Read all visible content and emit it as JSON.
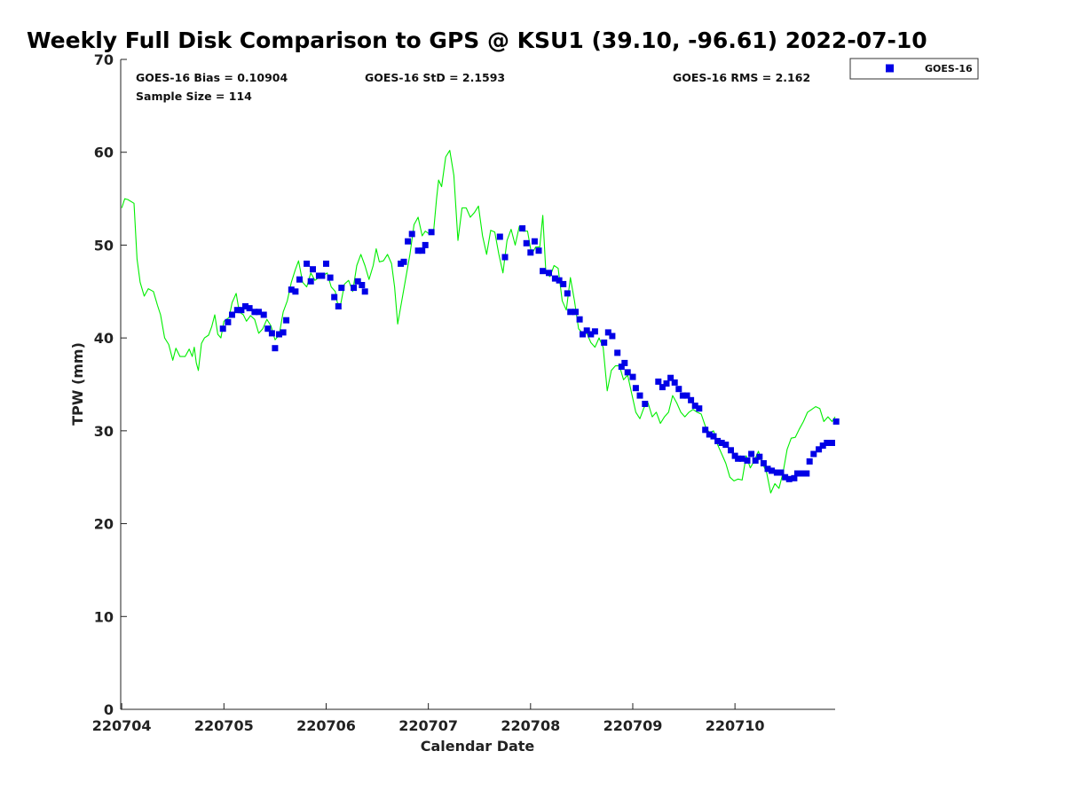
{
  "chart_data": {
    "type": "scatter",
    "title": "Weekly Full Disk Comparison to GPS @ KSU1 (39.10, -96.61) 2022-07-10",
    "xlabel": "Calendar Date",
    "ylabel": "TPW (mm)",
    "x_tick_labels": [
      "220704",
      "220705",
      "220706",
      "220707",
      "220708",
      "220709",
      "220710"
    ],
    "x_tick_values": [
      0,
      1,
      2,
      3,
      4,
      5,
      6
    ],
    "xlim": [
      -0.01,
      6.98
    ],
    "ylim": [
      0,
      70
    ],
    "y_ticks": [
      0,
      10,
      20,
      30,
      40,
      50,
      60,
      70
    ],
    "grid": false,
    "legend": {
      "placement": "top-right-outside",
      "entries": [
        {
          "name": "GOES-16",
          "marker": "square",
          "color": "#0000e6"
        }
      ]
    },
    "stats": {
      "bias": "GOES-16 Bias = 0.10904",
      "std": "GOES-16 StD = 2.1593",
      "rms": "GOES-16 RMS = 2.162",
      "sample_size": "Sample Size = 114"
    },
    "series": [
      {
        "name": "GOES-16",
        "style": "markers",
        "color": "#0000e6",
        "points": [
          [
            0.99,
            41.0
          ],
          [
            1.04,
            41.7
          ],
          [
            1.08,
            42.5
          ],
          [
            1.13,
            43.0
          ],
          [
            1.17,
            43.0
          ],
          [
            1.21,
            43.4
          ],
          [
            1.25,
            43.2
          ],
          [
            1.3,
            42.8
          ],
          [
            1.34,
            42.8
          ],
          [
            1.39,
            42.5
          ],
          [
            1.43,
            41.0
          ],
          [
            1.47,
            40.5
          ],
          [
            1.5,
            38.9
          ],
          [
            1.54,
            40.4
          ],
          [
            1.58,
            40.6
          ],
          [
            1.61,
            41.9
          ],
          [
            1.66,
            45.2
          ],
          [
            1.7,
            45.0
          ],
          [
            1.74,
            46.3
          ],
          [
            1.81,
            48.0
          ],
          [
            1.85,
            46.1
          ],
          [
            1.87,
            47.4
          ],
          [
            1.93,
            46.7
          ],
          [
            1.96,
            46.7
          ],
          [
            2.0,
            48.0
          ],
          [
            2.04,
            46.5
          ],
          [
            2.08,
            44.4
          ],
          [
            2.12,
            43.4
          ],
          [
            2.15,
            45.4
          ],
          [
            2.27,
            45.4
          ],
          [
            2.31,
            46.1
          ],
          [
            2.35,
            45.7
          ],
          [
            2.38,
            45.0
          ],
          [
            2.73,
            48.0
          ],
          [
            2.76,
            48.2
          ],
          [
            2.8,
            50.4
          ],
          [
            2.84,
            51.2
          ],
          [
            2.9,
            49.4
          ],
          [
            2.94,
            49.4
          ],
          [
            2.97,
            50.0
          ],
          [
            3.03,
            51.4
          ],
          [
            3.7,
            50.9
          ],
          [
            3.75,
            48.7
          ],
          [
            3.92,
            51.8
          ],
          [
            3.96,
            50.2
          ],
          [
            4.0,
            49.2
          ],
          [
            4.04,
            50.4
          ],
          [
            4.08,
            49.4
          ],
          [
            4.12,
            47.2
          ],
          [
            4.18,
            47.0
          ],
          [
            4.24,
            46.4
          ],
          [
            4.28,
            46.2
          ],
          [
            4.32,
            45.8
          ],
          [
            4.36,
            44.8
          ],
          [
            4.39,
            42.8
          ],
          [
            4.44,
            42.8
          ],
          [
            4.48,
            42.0
          ],
          [
            4.51,
            40.4
          ],
          [
            4.55,
            40.8
          ],
          [
            4.59,
            40.4
          ],
          [
            4.63,
            40.7
          ],
          [
            4.72,
            39.5
          ],
          [
            4.76,
            40.6
          ],
          [
            4.8,
            40.2
          ],
          [
            4.85,
            38.4
          ],
          [
            4.89,
            36.9
          ],
          [
            4.92,
            37.3
          ],
          [
            4.95,
            36.3
          ],
          [
            5.0,
            35.8
          ],
          [
            5.03,
            34.6
          ],
          [
            5.07,
            33.8
          ],
          [
            5.12,
            32.9
          ],
          [
            5.25,
            35.3
          ],
          [
            5.29,
            34.7
          ],
          [
            5.33,
            35.1
          ],
          [
            5.37,
            35.7
          ],
          [
            5.41,
            35.2
          ],
          [
            5.45,
            34.5
          ],
          [
            5.49,
            33.8
          ],
          [
            5.53,
            33.8
          ],
          [
            5.57,
            33.3
          ],
          [
            5.61,
            32.7
          ],
          [
            5.65,
            32.4
          ],
          [
            5.71,
            30.1
          ],
          [
            5.75,
            29.6
          ],
          [
            5.79,
            29.4
          ],
          [
            5.83,
            28.9
          ],
          [
            5.87,
            28.7
          ],
          [
            5.91,
            28.5
          ],
          [
            5.96,
            27.9
          ],
          [
            6.0,
            27.3
          ],
          [
            6.03,
            27.0
          ],
          [
            6.07,
            27.0
          ],
          [
            6.12,
            26.8
          ],
          [
            6.16,
            27.5
          ],
          [
            6.2,
            26.8
          ],
          [
            6.24,
            27.2
          ],
          [
            6.28,
            26.5
          ],
          [
            6.32,
            25.9
          ],
          [
            6.36,
            25.7
          ],
          [
            6.41,
            25.5
          ],
          [
            6.45,
            25.5
          ],
          [
            6.49,
            25.0
          ],
          [
            6.53,
            24.8
          ],
          [
            6.58,
            24.9
          ],
          [
            6.61,
            25.4
          ],
          [
            6.65,
            25.4
          ],
          [
            6.7,
            25.4
          ],
          [
            6.73,
            26.7
          ],
          [
            6.77,
            27.5
          ],
          [
            6.82,
            28.0
          ],
          [
            6.86,
            28.4
          ],
          [
            6.9,
            28.7
          ],
          [
            6.95,
            28.7
          ],
          [
            6.99,
            31.0
          ]
        ]
      },
      {
        "name": "",
        "style": "line",
        "color": "#00ee00",
        "points": [
          [
            0.0,
            54.0
          ],
          [
            0.03,
            55.0
          ],
          [
            0.06,
            54.9
          ],
          [
            0.12,
            54.5
          ],
          [
            0.15,
            48.5
          ],
          [
            0.18,
            46.0
          ],
          [
            0.22,
            44.5
          ],
          [
            0.26,
            45.3
          ],
          [
            0.31,
            45.0
          ],
          [
            0.35,
            43.5
          ],
          [
            0.38,
            42.5
          ],
          [
            0.42,
            40.0
          ],
          [
            0.46,
            39.3
          ],
          [
            0.5,
            37.6
          ],
          [
            0.53,
            38.9
          ],
          [
            0.57,
            38.0
          ],
          [
            0.62,
            38.0
          ],
          [
            0.66,
            38.8
          ],
          [
            0.69,
            38.0
          ],
          [
            0.71,
            39.0
          ],
          [
            0.73,
            37.3
          ],
          [
            0.75,
            36.5
          ],
          [
            0.78,
            39.4
          ],
          [
            0.81,
            40.0
          ],
          [
            0.85,
            40.3
          ],
          [
            0.88,
            41.2
          ],
          [
            0.91,
            42.5
          ],
          [
            0.94,
            40.4
          ],
          [
            0.97,
            40.0
          ],
          [
            1.0,
            41.8
          ],
          [
            1.05,
            42.2
          ],
          [
            1.08,
            43.8
          ],
          [
            1.12,
            44.8
          ],
          [
            1.15,
            42.8
          ],
          [
            1.19,
            42.5
          ],
          [
            1.22,
            41.8
          ],
          [
            1.26,
            42.4
          ],
          [
            1.3,
            42.0
          ],
          [
            1.34,
            40.5
          ],
          [
            1.38,
            41.0
          ],
          [
            1.42,
            42.0
          ],
          [
            1.46,
            41.3
          ],
          [
            1.5,
            39.8
          ],
          [
            1.54,
            40.3
          ],
          [
            1.58,
            42.8
          ],
          [
            1.62,
            44.0
          ],
          [
            1.66,
            46.0
          ],
          [
            1.7,
            47.4
          ],
          [
            1.73,
            48.3
          ],
          [
            1.77,
            46.0
          ],
          [
            1.81,
            45.5
          ],
          [
            1.85,
            47.0
          ],
          [
            1.89,
            46.2
          ],
          [
            1.93,
            46.5
          ],
          [
            1.97,
            46.7
          ],
          [
            2.01,
            47.0
          ],
          [
            2.05,
            45.5
          ],
          [
            2.09,
            45.0
          ],
          [
            2.11,
            43.8
          ],
          [
            2.14,
            43.5
          ],
          [
            2.18,
            45.8
          ],
          [
            2.22,
            46.2
          ],
          [
            2.26,
            45.0
          ],
          [
            2.3,
            47.8
          ],
          [
            2.34,
            49.0
          ],
          [
            2.38,
            47.8
          ],
          [
            2.42,
            46.3
          ],
          [
            2.46,
            47.8
          ],
          [
            2.49,
            49.6
          ],
          [
            2.52,
            48.2
          ],
          [
            2.56,
            48.3
          ],
          [
            2.6,
            49.0
          ],
          [
            2.64,
            48.0
          ],
          [
            2.67,
            45.5
          ],
          [
            2.7,
            41.5
          ],
          [
            2.74,
            44.0
          ],
          [
            2.78,
            46.5
          ],
          [
            2.82,
            49.0
          ],
          [
            2.86,
            52.2
          ],
          [
            2.9,
            53.0
          ],
          [
            2.94,
            51.0
          ],
          [
            2.97,
            51.5
          ],
          [
            3.01,
            51.2
          ],
          [
            3.05,
            51.3
          ],
          [
            3.08,
            55.0
          ],
          [
            3.1,
            57.0
          ],
          [
            3.13,
            56.3
          ],
          [
            3.17,
            59.5
          ],
          [
            3.21,
            60.2
          ],
          [
            3.25,
            57.5
          ],
          [
            3.29,
            50.5
          ],
          [
            3.33,
            54.0
          ],
          [
            3.37,
            54.0
          ],
          [
            3.41,
            53.0
          ],
          [
            3.45,
            53.5
          ],
          [
            3.49,
            54.2
          ],
          [
            3.53,
            51.0
          ],
          [
            3.57,
            49.0
          ],
          [
            3.61,
            51.6
          ],
          [
            3.65,
            51.4
          ],
          [
            3.69,
            49.0
          ],
          [
            3.73,
            47.0
          ],
          [
            3.77,
            50.5
          ],
          [
            3.81,
            51.7
          ],
          [
            3.85,
            50.0
          ],
          [
            3.89,
            52.0
          ],
          [
            3.93,
            51.5
          ],
          [
            3.97,
            51.5
          ],
          [
            4.01,
            49.0
          ],
          [
            4.05,
            49.8
          ],
          [
            4.09,
            49.8
          ],
          [
            4.12,
            53.2
          ],
          [
            4.15,
            47.0
          ],
          [
            4.19,
            46.6
          ],
          [
            4.23,
            47.8
          ],
          [
            4.27,
            47.5
          ],
          [
            4.31,
            44.0
          ],
          [
            4.35,
            43.0
          ],
          [
            4.39,
            46.5
          ],
          [
            4.43,
            44.0
          ],
          [
            4.47,
            41.0
          ],
          [
            4.51,
            40.5
          ],
          [
            4.55,
            40.5
          ],
          [
            4.59,
            39.5
          ],
          [
            4.63,
            39.0
          ],
          [
            4.67,
            40.0
          ],
          [
            4.71,
            39.0
          ],
          [
            4.75,
            34.3
          ],
          [
            4.79,
            36.5
          ],
          [
            4.83,
            37.0
          ],
          [
            4.87,
            37.0
          ],
          [
            4.91,
            35.5
          ],
          [
            4.95,
            36.0
          ],
          [
            4.99,
            34.0
          ],
          [
            5.03,
            32.0
          ],
          [
            5.07,
            31.3
          ],
          [
            5.11,
            32.5
          ],
          [
            5.15,
            33.0
          ],
          [
            5.19,
            31.5
          ],
          [
            5.23,
            32.0
          ],
          [
            5.27,
            30.8
          ],
          [
            5.31,
            31.5
          ],
          [
            5.35,
            32.0
          ],
          [
            5.39,
            33.8
          ],
          [
            5.43,
            33.0
          ],
          [
            5.47,
            32.0
          ],
          [
            5.51,
            31.5
          ],
          [
            5.55,
            32.0
          ],
          [
            5.59,
            32.3
          ],
          [
            5.63,
            32.0
          ],
          [
            5.67,
            31.8
          ],
          [
            5.71,
            30.5
          ],
          [
            5.75,
            29.8
          ],
          [
            5.79,
            30.0
          ],
          [
            5.83,
            28.5
          ],
          [
            5.87,
            27.5
          ],
          [
            5.91,
            26.5
          ],
          [
            5.95,
            25.0
          ],
          [
            5.99,
            24.6
          ],
          [
            6.03,
            24.8
          ],
          [
            6.07,
            24.7
          ],
          [
            6.11,
            27.3
          ],
          [
            6.15,
            26.0
          ],
          [
            6.19,
            26.8
          ],
          [
            6.23,
            27.8
          ],
          [
            6.27,
            26.5
          ],
          [
            6.31,
            25.5
          ],
          [
            6.35,
            23.3
          ],
          [
            6.39,
            24.3
          ],
          [
            6.43,
            23.8
          ],
          [
            6.47,
            25.5
          ],
          [
            6.51,
            28.0
          ],
          [
            6.55,
            29.2
          ],
          [
            6.59,
            29.3
          ],
          [
            6.63,
            30.2
          ],
          [
            6.67,
            31.0
          ],
          [
            6.71,
            32.0
          ],
          [
            6.75,
            32.3
          ],
          [
            6.79,
            32.6
          ],
          [
            6.83,
            32.4
          ],
          [
            6.87,
            31.0
          ],
          [
            6.91,
            31.5
          ],
          [
            6.95,
            31.0
          ],
          [
            6.98,
            31.5
          ]
        ]
      }
    ]
  }
}
